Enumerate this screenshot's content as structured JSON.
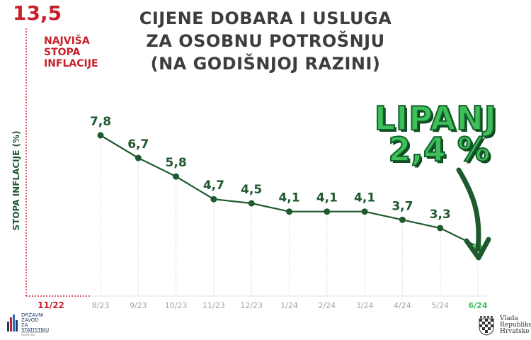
{
  "title": {
    "line1": "CIJENE DOBARA I USLUGA",
    "line2": "ZA OSOBNU POTROŠNJU",
    "line3": "(NA GODIŠNJOJ RAZINI)"
  },
  "max_marker": {
    "value": "13,5",
    "label_line1": "NAJVIŠA",
    "label_line2": "STOPA",
    "label_line3": "INFLACIJE",
    "category": "11/22"
  },
  "callout": {
    "month": "LIPANJ",
    "value": "2,4 %"
  },
  "logos": {
    "dzs_line1": "DRŽAVNI",
    "dzs_line2": "ZAVOD",
    "dzs_line3": "ZA",
    "dzs_line4": "STATISTIKU",
    "dzs_sub": "CROATIAN BUREAU OF STATISTICS",
    "gov_line1": "Vlada",
    "gov_line2": "Republike",
    "gov_line3": "Hrvatske"
  },
  "colors": {
    "line": "#1f5a2e",
    "highlight_point": "#3fcf5e",
    "max_marker": "#c8202a",
    "tick_label": "#9aa7ad",
    "highlight_tick": "#3fbf5a",
    "arrow": "#1f5a2e"
  },
  "chart_data": {
    "type": "line",
    "title": "CIJENE DOBARA I USLUGA ZA OSOBNU POTROŠNJU (NA GODIŠNJOJ RAZINI)",
    "ylabel": "STOPA INFLACIJE (%)",
    "xlabel": "",
    "categories": [
      "8/23",
      "9/23",
      "10/23",
      "11/23",
      "12/23",
      "1/24",
      "2/24",
      "3/24",
      "4/24",
      "5/24",
      "6/24"
    ],
    "values": [
      7.8,
      6.7,
      5.8,
      4.7,
      4.5,
      4.1,
      4.1,
      4.1,
      3.7,
      3.3,
      2.4
    ],
    "data_labels": [
      "7,8",
      "6,7",
      "5,8",
      "4,7",
      "4,5",
      "4,1",
      "4,1",
      "4,1",
      "3,7",
      "3,3",
      ""
    ],
    "highlight_index": 10,
    "grid": false
  }
}
